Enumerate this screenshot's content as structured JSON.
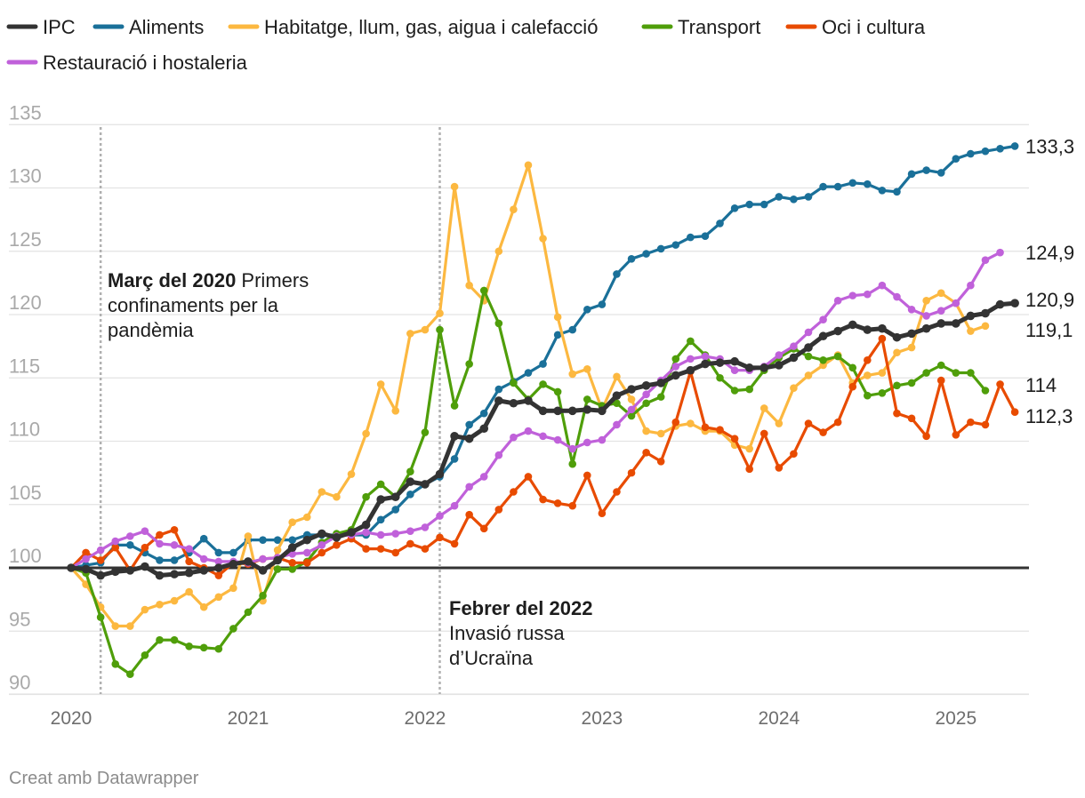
{
  "footer": "Creat amb Datawrapper",
  "annotations": [
    {
      "date": "2020-03",
      "lines": [
        {
          "bold": "Març del 2020",
          "rest": " Primers"
        },
        {
          "bold": "",
          "rest": "confinaments per la"
        },
        {
          "bold": "",
          "rest": "pandèmia"
        }
      ]
    },
    {
      "date": "2022-02",
      "lines": [
        {
          "bold": "Febrer del 2022",
          "rest": ""
        },
        {
          "bold": "",
          "rest": "Invasió russa"
        },
        {
          "bold": "",
          "rest": "d’Ucraïna"
        }
      ]
    }
  ],
  "chart_data": {
    "type": "line",
    "x_start": "2020-01",
    "x_ticks": [
      "2020",
      "2021",
      "2022",
      "2023",
      "2024",
      "2025"
    ],
    "ylim": [
      88,
      136
    ],
    "y_ticks": [
      90,
      95,
      100,
      105,
      110,
      115,
      120,
      125,
      130,
      135
    ],
    "baseline": 100,
    "series": [
      {
        "name": "Aliments",
        "color": "#1a7099",
        "end_label": "133,3",
        "values": [
          100,
          100.2,
          100.4,
          101.8,
          101.8,
          101.2,
          100.6,
          100.6,
          101.2,
          102.3,
          101.2,
          101.2,
          102.2,
          102.2,
          102.2,
          102.2,
          102.6,
          102.6,
          102.6,
          102.6,
          102.6,
          103.8,
          104.6,
          105.8,
          106.6,
          107.2,
          108.6,
          111.3,
          112.2,
          114.1,
          114.7,
          115.4,
          116.1,
          118.4,
          118.8,
          120.4,
          120.8,
          123.2,
          124.4,
          124.8,
          125.2,
          125.5,
          126.1,
          126.2,
          127.2,
          128.4,
          128.7,
          128.7,
          129.3,
          129.1,
          129.3,
          130.1,
          130.1,
          130.4,
          130.3,
          129.8,
          129.7,
          131.1,
          131.4,
          131.2,
          132.3,
          132.7,
          132.9,
          133.1,
          133.3
        ]
      },
      {
        "name": "Habitatge, llum, gas, aigua i calefacció",
        "color": "#fcb840",
        "end_label": "119,1",
        "values": [
          100,
          98.7,
          96.9,
          95.4,
          95.4,
          96.7,
          97.1,
          97.4,
          98.1,
          96.9,
          97.7,
          98.4,
          102.5,
          97.4,
          101.4,
          103.6,
          104,
          106,
          105.6,
          107.4,
          110.6,
          114.5,
          112.4,
          118.5,
          118.8,
          120.1,
          130.1,
          122.3,
          121.1,
          125,
          128.3,
          131.8,
          126,
          119.8,
          115.3,
          115.7,
          112.5,
          115.1,
          113.3,
          110.8,
          110.6,
          111.2,
          111.4,
          110.8,
          110.8,
          109.7,
          109.4,
          112.6,
          111.4,
          114.2,
          115.2,
          116,
          116.8,
          114.6,
          115.2,
          115.4,
          117,
          117.4,
          121.1,
          121.7,
          120.9,
          118.7,
          119.1
        ]
      },
      {
        "name": "Transport",
        "color": "#4f9e0a",
        "end_label": "114",
        "values": [
          100,
          99.6,
          96.1,
          92.4,
          91.6,
          93.1,
          94.3,
          94.3,
          93.8,
          93.7,
          93.6,
          95.2,
          96.5,
          97.8,
          99.9,
          99.9,
          100.5,
          102,
          102.7,
          103,
          105.6,
          106.6,
          105.6,
          107.6,
          110.7,
          118.8,
          112.8,
          116.1,
          121.9,
          119.3,
          114.6,
          113.3,
          114.5,
          113.9,
          108.2,
          113.3,
          112.8,
          113,
          112,
          113,
          113.5,
          116.5,
          117.9,
          116.8,
          115,
          114,
          114.1,
          115.6,
          116.6,
          117.3,
          116.7,
          116.4,
          116.7,
          115.8,
          113.6,
          113.8,
          114.4,
          114.6,
          115.4,
          116,
          115.4,
          115.4,
          114
        ]
      },
      {
        "name": "Oci i cultura",
        "color": "#e84b00",
        "end_label": "112,3",
        "values": [
          100,
          101.2,
          100.6,
          101.6,
          99.8,
          101.6,
          102.6,
          103,
          100.5,
          100,
          99.4,
          100.4,
          100.3,
          100.7,
          100.8,
          100.4,
          100.4,
          101.2,
          101.8,
          102.3,
          101.5,
          101.5,
          101.2,
          101.9,
          101.5,
          102.4,
          101.9,
          104.2,
          103.1,
          104.6,
          106,
          107.2,
          105.4,
          105.1,
          104.9,
          107.3,
          104.3,
          106,
          107.5,
          109.1,
          108.4,
          111.5,
          115.5,
          111.1,
          110.9,
          110.2,
          107.8,
          110.6,
          107.9,
          109,
          111.4,
          110.7,
          111.5,
          114.3,
          116.4,
          118.1,
          112.2,
          111.8,
          110.4,
          114.8,
          110.5,
          111.5,
          111.3,
          114.5,
          112.3
        ]
      },
      {
        "name": "Restauració i hostaleria",
        "color": "#c061da",
        "end_label": "124,9",
        "values": [
          100,
          100.7,
          101.4,
          102.1,
          102.5,
          102.9,
          101.9,
          101.8,
          101.5,
          100.7,
          100.5,
          100.5,
          100.4,
          100.7,
          100.8,
          101.1,
          101.2,
          101.8,
          102.5,
          102.6,
          102.8,
          102.6,
          102.7,
          102.9,
          103.2,
          104.1,
          104.9,
          106.4,
          107.2,
          108.9,
          110.3,
          110.8,
          110.4,
          110.1,
          109.4,
          109.9,
          110.1,
          111.3,
          112.5,
          113.7,
          114.8,
          115.9,
          116.5,
          116.7,
          116.5,
          115.6,
          115.6,
          115.9,
          116.8,
          117.5,
          118.6,
          119.6,
          121.1,
          121.5,
          121.6,
          122.3,
          121.4,
          120.4,
          119.9,
          120.3,
          120.9,
          122.3,
          124.3,
          124.9
        ]
      },
      {
        "name": "IPC",
        "color": "#333333",
        "end_label": "120,9",
        "values": [
          100,
          99.9,
          99.4,
          99.7,
          99.8,
          100.1,
          99.4,
          99.5,
          99.6,
          99.8,
          100,
          100.3,
          100.5,
          99.8,
          100.6,
          101.6,
          102.2,
          102.7,
          102.4,
          102.8,
          103.4,
          105.4,
          105.6,
          106.8,
          106.6,
          107.4,
          110.4,
          110.2,
          111,
          113.2,
          113,
          113.2,
          112.4,
          112.4,
          112.4,
          112.5,
          112.4,
          113.6,
          114.1,
          114.4,
          114.6,
          115.2,
          115.6,
          116.1,
          116.2,
          116.3,
          115.8,
          115.8,
          116,
          116.6,
          117.4,
          118.3,
          118.7,
          119.2,
          118.8,
          118.9,
          118.2,
          118.5,
          118.9,
          119.3,
          119.3,
          119.9,
          120.1,
          120.8,
          120.9
        ]
      }
    ]
  }
}
